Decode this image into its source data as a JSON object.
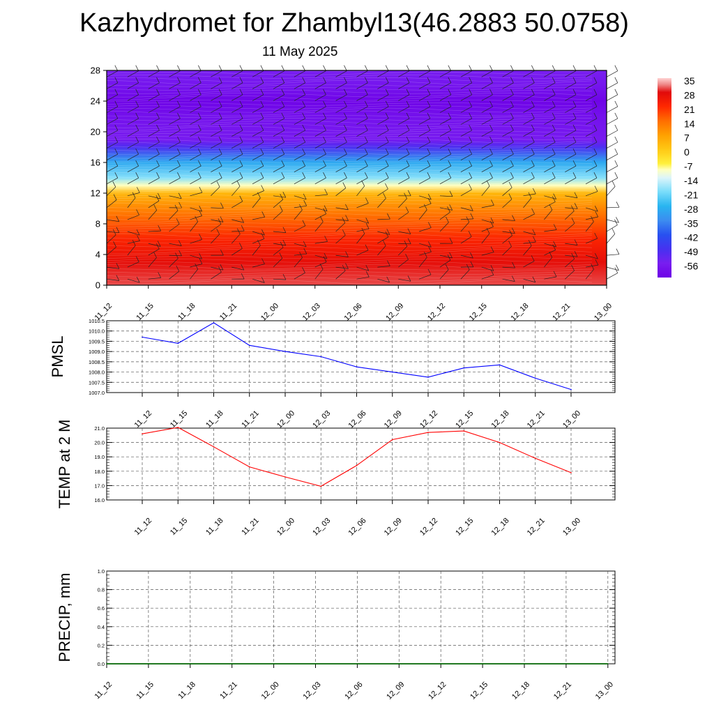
{
  "header": {
    "title": "Kazhydromet for Zhambyl13(46.2883 50.0758)",
    "date": "11 May 2025"
  },
  "colors": {
    "pmsl_line": "#0000ff",
    "temp_line": "#ff0000",
    "precip_line": "#006400",
    "grid": "#555555"
  },
  "chart_data": [
    {
      "type": "heatmap",
      "ylim": [
        0,
        28
      ],
      "yticks": [
        0,
        4,
        8,
        12,
        16,
        20,
        24,
        28
      ],
      "x_labels": [
        "11_12",
        "11_15",
        "11_18",
        "11_21",
        "12_00",
        "12_03",
        "12_06",
        "12_09",
        "12_12",
        "12_15",
        "12_18",
        "12_21",
        "13_00"
      ],
      "colorbar": {
        "labels": [
          "35",
          "28",
          "21",
          "14",
          "7",
          "0",
          "-7",
          "-14",
          "-21",
          "-28",
          "-35",
          "-42",
          "-49",
          "-56"
        ],
        "range": [
          -63,
          35
        ]
      },
      "temperature_by_level": [
        {
          "level": 0,
          "t": 30
        },
        {
          "level": 3,
          "t": 27
        },
        {
          "level": 6,
          "t": 22
        },
        {
          "level": 9,
          "t": 14
        },
        {
          "level": 12,
          "t": 3
        },
        {
          "level": 13,
          "t": -10
        },
        {
          "level": 14,
          "t": -20
        },
        {
          "level": 16,
          "t": -30
        },
        {
          "level": 18,
          "t": -50
        },
        {
          "level": 19,
          "t": -57
        },
        {
          "level": 22,
          "t": -59
        },
        {
          "level": 24,
          "t": -62
        },
        {
          "level": 26,
          "t": -58
        },
        {
          "level": 28,
          "t": -56
        }
      ]
    },
    {
      "type": "line",
      "ylabel": "PMSL",
      "x": [
        "11_12",
        "11_15",
        "11_18",
        "11_21",
        "12_00",
        "12_03",
        "12_06",
        "12_09",
        "12_12",
        "12_15",
        "12_18",
        "12_21",
        "13_00"
      ],
      "ylim": [
        1007.0,
        1010.5
      ],
      "yticks": [
        "1007.0",
        "1007.5",
        "1008.0",
        "1008.5",
        "1009.0",
        "1009.5",
        "1010.0",
        "1010.5"
      ],
      "values": [
        1009.7,
        1009.4,
        1010.4,
        1009.3,
        1009.0,
        1008.75,
        1008.25,
        1008.0,
        1007.75,
        1008.2,
        1008.35,
        1007.7,
        1007.15
      ]
    },
    {
      "type": "line",
      "ylabel": "TEMP at 2 M",
      "x": [
        "11_12",
        "11_15",
        "11_18",
        "11_21",
        "12_00",
        "12_03",
        "12_06",
        "12_09",
        "12_12",
        "12_15",
        "12_18",
        "12_21",
        "13_00"
      ],
      "ylim": [
        16.0,
        21.0
      ],
      "yticks": [
        "16.0",
        "17.0",
        "18.0",
        "19.0",
        "20.0",
        "21.0"
      ],
      "values": [
        20.6,
        21.05,
        19.7,
        18.3,
        17.6,
        16.95,
        18.4,
        20.2,
        20.7,
        20.8,
        20.0,
        18.9,
        17.9
      ]
    },
    {
      "type": "line",
      "ylabel": "PRECIP, mm",
      "x": [
        "11_12",
        "11_15",
        "11_18",
        "11_21",
        "12_00",
        "12_03",
        "12_06",
        "12_09",
        "12_12",
        "12_15",
        "12_18",
        "12_21",
        "13_00"
      ],
      "ylim": [
        0.0,
        1.0
      ],
      "yticks": [
        "0.0",
        "0.2",
        "0.4",
        "0.6",
        "0.8",
        "1.0"
      ],
      "values": [
        0,
        0,
        0,
        0,
        0,
        0,
        0,
        0,
        0,
        0,
        0,
        0,
        0
      ]
    }
  ]
}
